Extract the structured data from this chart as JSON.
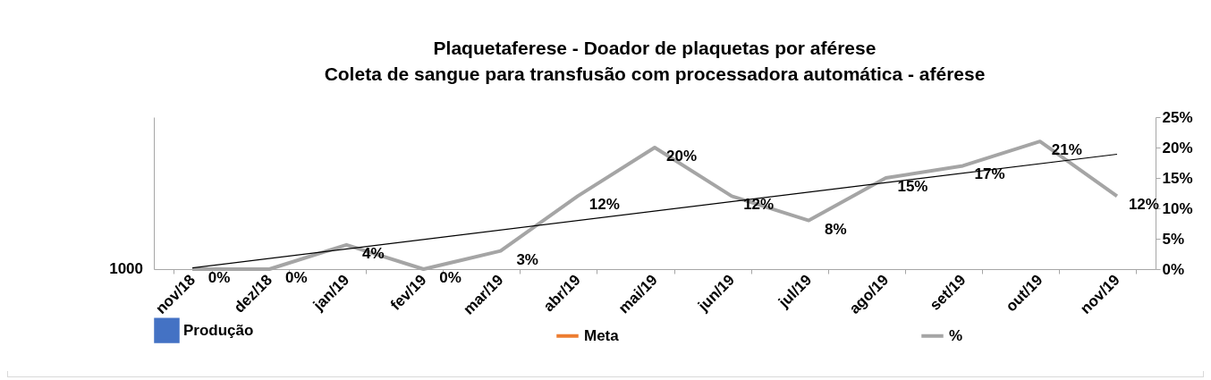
{
  "chart_data": {
    "type": "bar",
    "title": "Plaquetaferese - Doador de plaquetas por aférese",
    "subtitle": "Coleta de sangue para transfusão com processadora automática - aférese",
    "categories": [
      "nov/18",
      "dez/18",
      "jan/19",
      "fev/19",
      "mar/19",
      "abr/19",
      "mai/19",
      "jun/19",
      "jul/19",
      "ago/19",
      "set/19",
      "out/19",
      "nov/19"
    ],
    "annotations": [
      "1000"
    ],
    "y2lim": [
      0,
      25
    ],
    "y2ticks": [
      {
        "value": 0,
        "label": "0%"
      },
      {
        "value": 5,
        "label": "5%"
      },
      {
        "value": 10,
        "label": "10%"
      },
      {
        "value": 15,
        "label": "15%"
      },
      {
        "value": 20,
        "label": "20%"
      },
      {
        "value": 25,
        "label": "25%"
      }
    ],
    "series": [
      {
        "name": "Produção",
        "color": "#4472c4",
        "values": [
          null,
          null,
          null,
          null,
          null,
          null,
          null,
          null,
          null,
          null,
          null,
          null,
          null
        ]
      },
      {
        "name": "Meta",
        "type": "line",
        "color": "#ed7d31",
        "values": [
          null,
          null,
          null,
          null,
          null,
          null,
          null,
          null,
          null,
          null,
          null,
          null,
          null
        ]
      },
      {
        "name": "%",
        "type": "line",
        "axis": "y2",
        "color": "#a5a5a5",
        "values": [
          0,
          0,
          4,
          0,
          3,
          12,
          20,
          12,
          8,
          15,
          17,
          21,
          12
        ],
        "value_labels": [
          "0%",
          "0%",
          "4%",
          "0%",
          "3%",
          "12%",
          "20%",
          "12%",
          "8%",
          "15%",
          "17%",
          "21%",
          "12%"
        ]
      },
      {
        "type": "line",
        "axis": "y2",
        "color": "#000000",
        "x": [
          "nov/18",
          "nov/19"
        ],
        "values": [
          0.2,
          18.9
        ]
      }
    ],
    "legend": "bottom",
    "grid": false
  }
}
